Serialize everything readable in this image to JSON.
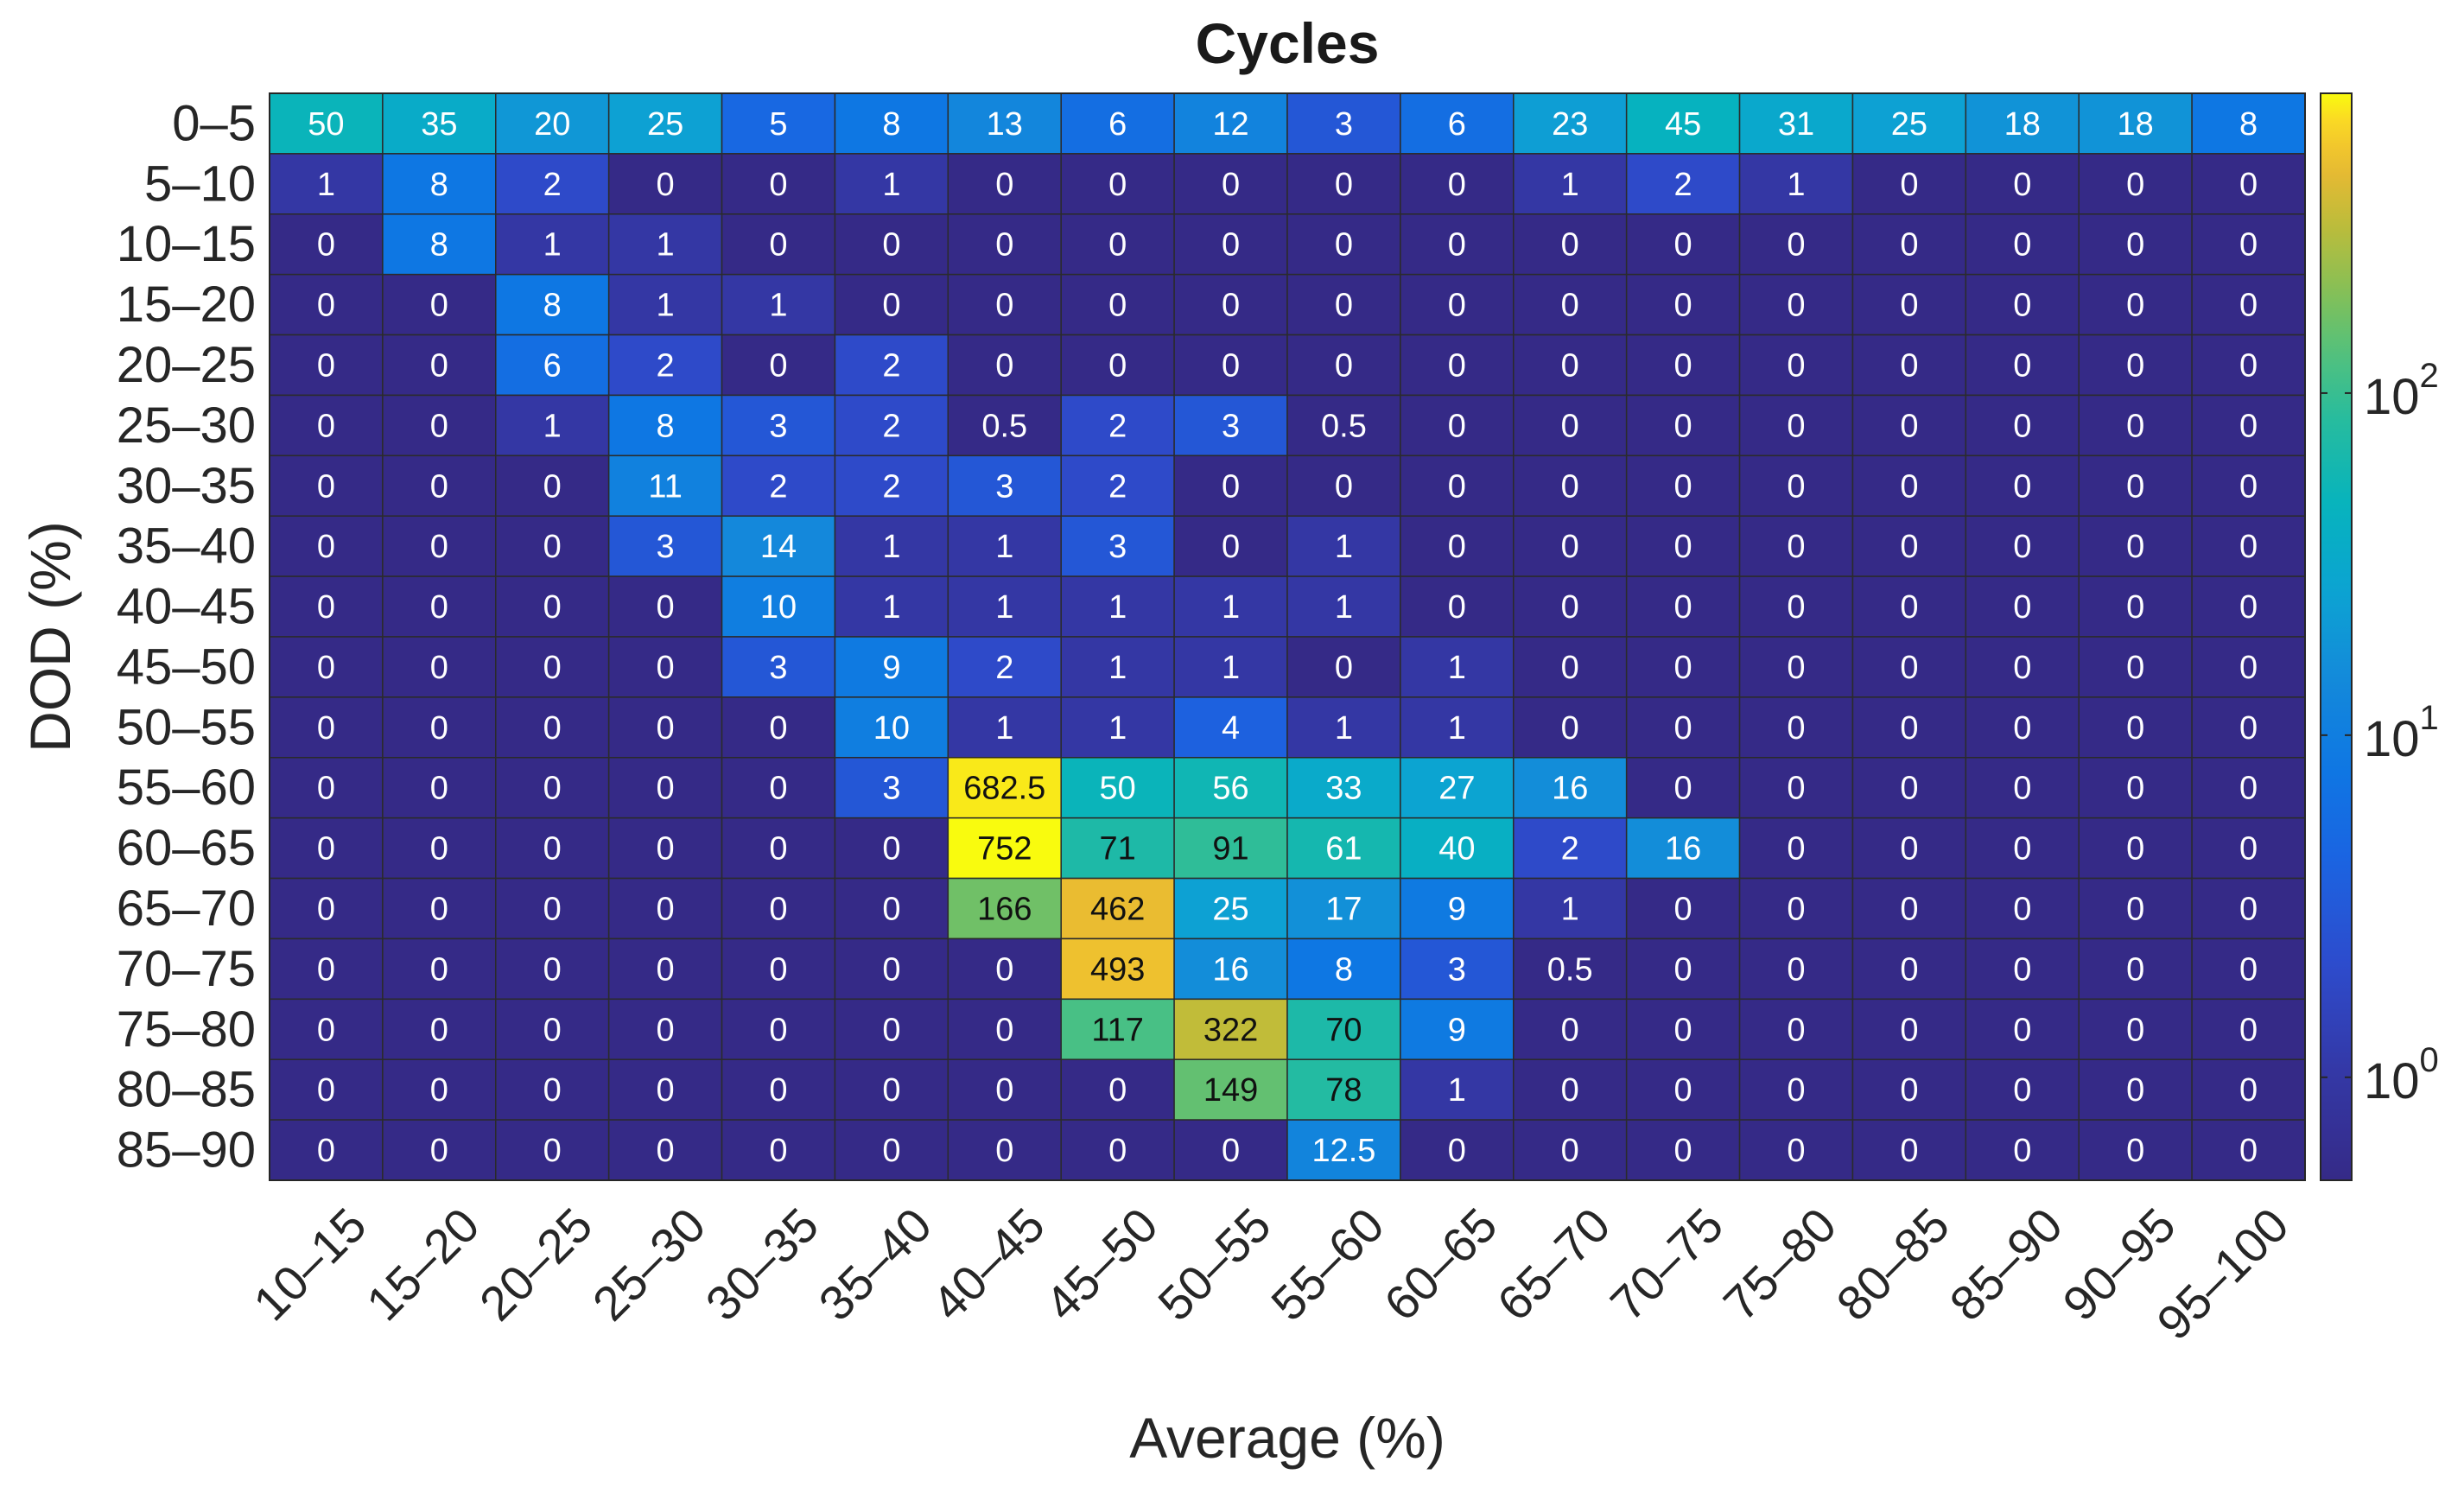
{
  "chart_data": {
    "type": "heatmap",
    "title": "Cycles",
    "xlabel": "Average (%)",
    "ylabel": "DOD (%)",
    "x_categories": [
      "10–15",
      "15–20",
      "20–25",
      "25–30",
      "30–35",
      "35–40",
      "40–45",
      "45–50",
      "50–55",
      "55–60",
      "60–65",
      "65–70",
      "70–75",
      "75–80",
      "80–85",
      "85–90",
      "90–95",
      "95–100"
    ],
    "y_categories": [
      "0–5",
      "5–10",
      "10–15",
      "15–20",
      "20–25",
      "25–30",
      "30–35",
      "35–40",
      "40–45",
      "45–50",
      "50–55",
      "55–60",
      "60–65",
      "65–70",
      "70–75",
      "75–80",
      "80–85",
      "85–90"
    ],
    "values": [
      [
        50,
        35,
        20,
        25,
        5,
        8,
        13,
        6,
        12,
        3,
        6,
        23,
        45,
        31,
        25,
        18,
        18,
        8
      ],
      [
        1,
        8,
        2,
        0,
        0,
        1,
        0,
        0,
        0,
        0,
        0,
        1,
        2,
        1,
        0,
        0,
        0,
        0
      ],
      [
        0,
        8,
        1,
        1,
        0,
        0,
        0,
        0,
        0,
        0,
        0,
        0,
        0,
        0,
        0,
        0,
        0,
        0
      ],
      [
        0,
        0,
        8,
        1,
        1,
        0,
        0,
        0,
        0,
        0,
        0,
        0,
        0,
        0,
        0,
        0,
        0,
        0
      ],
      [
        0,
        0,
        6,
        2,
        0,
        2,
        0,
        0,
        0,
        0,
        0,
        0,
        0,
        0,
        0,
        0,
        0,
        0
      ],
      [
        0,
        0,
        1,
        8,
        3,
        2,
        0.5,
        2,
        3,
        0.5,
        0,
        0,
        0,
        0,
        0,
        0,
        0,
        0
      ],
      [
        0,
        0,
        0,
        11,
        2,
        2,
        3,
        2,
        0,
        0,
        0,
        0,
        0,
        0,
        0,
        0,
        0,
        0
      ],
      [
        0,
        0,
        0,
        3,
        14,
        1,
        1,
        3,
        0,
        1,
        0,
        0,
        0,
        0,
        0,
        0,
        0,
        0
      ],
      [
        0,
        0,
        0,
        0,
        10,
        1,
        1,
        1,
        1,
        1,
        0,
        0,
        0,
        0,
        0,
        0,
        0,
        0
      ],
      [
        0,
        0,
        0,
        0,
        3,
        9,
        2,
        1,
        1,
        0,
        1,
        0,
        0,
        0,
        0,
        0,
        0,
        0
      ],
      [
        0,
        0,
        0,
        0,
        0,
        10,
        1,
        1,
        4,
        1,
        1,
        0,
        0,
        0,
        0,
        0,
        0,
        0
      ],
      [
        0,
        0,
        0,
        0,
        0,
        3,
        682.5,
        50,
        56,
        33,
        27,
        16,
        0,
        0,
        0,
        0,
        0,
        0
      ],
      [
        0,
        0,
        0,
        0,
        0,
        0,
        752,
        71,
        91,
        61,
        40,
        2,
        16,
        0,
        0,
        0,
        0,
        0
      ],
      [
        0,
        0,
        0,
        0,
        0,
        0,
        166,
        462,
        25,
        17,
        9,
        1,
        0,
        0,
        0,
        0,
        0,
        0
      ],
      [
        0,
        0,
        0,
        0,
        0,
        0,
        0,
        493,
        16,
        8,
        3,
        0.5,
        0,
        0,
        0,
        0,
        0,
        0
      ],
      [
        0,
        0,
        0,
        0,
        0,
        0,
        0,
        117,
        322,
        70,
        9,
        0,
        0,
        0,
        0,
        0,
        0,
        0
      ],
      [
        0,
        0,
        0,
        0,
        0,
        0,
        0,
        0,
        149,
        78,
        1,
        0,
        0,
        0,
        0,
        0,
        0,
        0
      ],
      [
        0,
        0,
        0,
        0,
        0,
        0,
        0,
        0,
        0,
        12.5,
        0,
        0,
        0,
        0,
        0,
        0,
        0,
        0
      ]
    ],
    "colorscale": "parula",
    "color_scale_type": "log",
    "color_range": [
      0.5,
      752
    ],
    "colorbar": {
      "base": "10",
      "ticks": [
        {
          "value": 1,
          "exponent": "0"
        },
        {
          "value": 10,
          "exponent": "1"
        },
        {
          "value": 100,
          "exponent": "2"
        }
      ]
    }
  }
}
